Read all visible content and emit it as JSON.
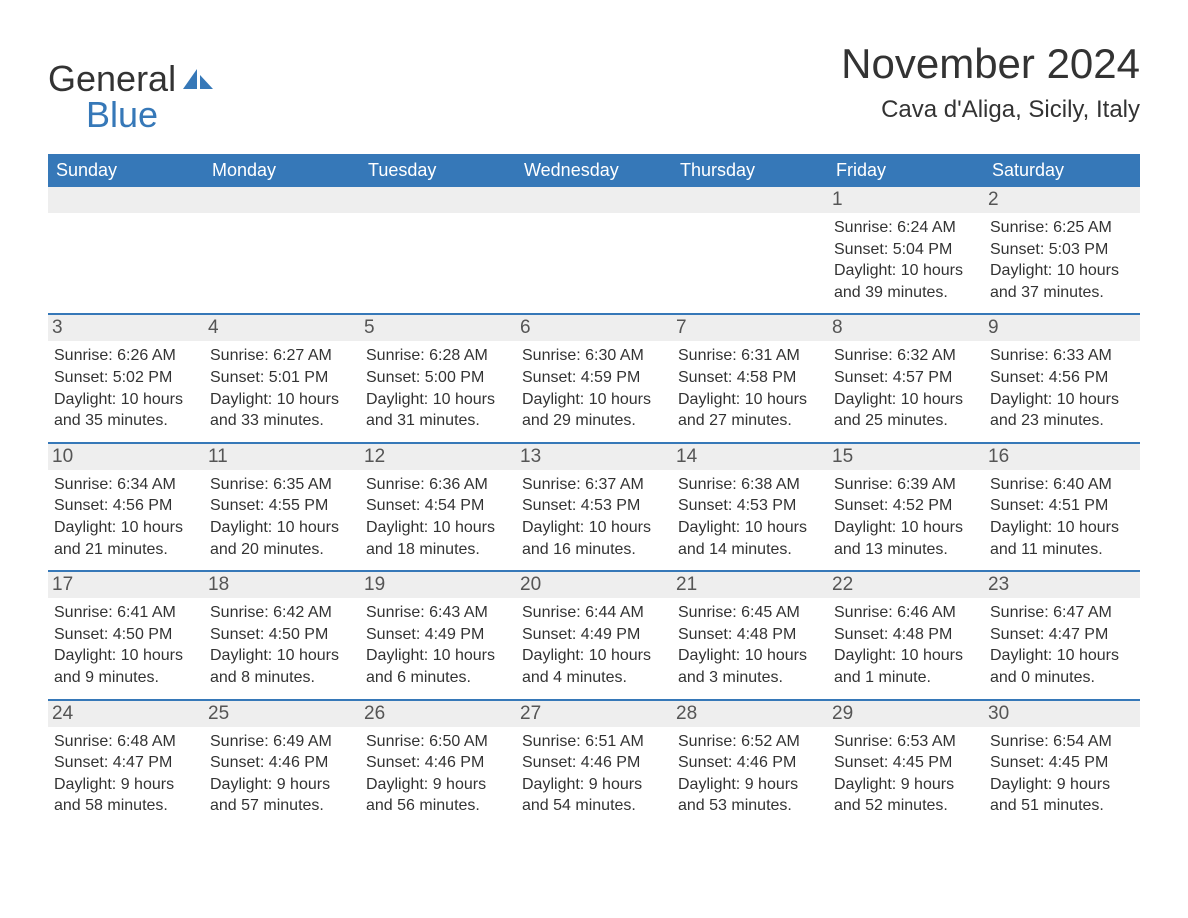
{
  "brand": {
    "general": "General",
    "blue": "Blue"
  },
  "title": "November 2024",
  "subtitle": "Cava d'Aliga, Sicily, Italy",
  "colors": {
    "header_bg": "#3678b8",
    "header_fg": "#ffffff",
    "daynum_bg": "#eeeeee",
    "text": "#333333",
    "rule": "#3678b8",
    "page_bg": "#ffffff"
  },
  "weekdays": [
    "Sunday",
    "Monday",
    "Tuesday",
    "Wednesday",
    "Thursday",
    "Friday",
    "Saturday"
  ],
  "weeks": [
    [
      {
        "empty": true
      },
      {
        "empty": true
      },
      {
        "empty": true
      },
      {
        "empty": true
      },
      {
        "empty": true
      },
      {
        "num": "1",
        "sunrise": "Sunrise: 6:24 AM",
        "sunset": "Sunset: 5:04 PM",
        "d1": "Daylight: 10 hours",
        "d2": "and 39 minutes."
      },
      {
        "num": "2",
        "sunrise": "Sunrise: 6:25 AM",
        "sunset": "Sunset: 5:03 PM",
        "d1": "Daylight: 10 hours",
        "d2": "and 37 minutes."
      }
    ],
    [
      {
        "num": "3",
        "sunrise": "Sunrise: 6:26 AM",
        "sunset": "Sunset: 5:02 PM",
        "d1": "Daylight: 10 hours",
        "d2": "and 35 minutes."
      },
      {
        "num": "4",
        "sunrise": "Sunrise: 6:27 AM",
        "sunset": "Sunset: 5:01 PM",
        "d1": "Daylight: 10 hours",
        "d2": "and 33 minutes."
      },
      {
        "num": "5",
        "sunrise": "Sunrise: 6:28 AM",
        "sunset": "Sunset: 5:00 PM",
        "d1": "Daylight: 10 hours",
        "d2": "and 31 minutes."
      },
      {
        "num": "6",
        "sunrise": "Sunrise: 6:30 AM",
        "sunset": "Sunset: 4:59 PM",
        "d1": "Daylight: 10 hours",
        "d2": "and 29 minutes."
      },
      {
        "num": "7",
        "sunrise": "Sunrise: 6:31 AM",
        "sunset": "Sunset: 4:58 PM",
        "d1": "Daylight: 10 hours",
        "d2": "and 27 minutes."
      },
      {
        "num": "8",
        "sunrise": "Sunrise: 6:32 AM",
        "sunset": "Sunset: 4:57 PM",
        "d1": "Daylight: 10 hours",
        "d2": "and 25 minutes."
      },
      {
        "num": "9",
        "sunrise": "Sunrise: 6:33 AM",
        "sunset": "Sunset: 4:56 PM",
        "d1": "Daylight: 10 hours",
        "d2": "and 23 minutes."
      }
    ],
    [
      {
        "num": "10",
        "sunrise": "Sunrise: 6:34 AM",
        "sunset": "Sunset: 4:56 PM",
        "d1": "Daylight: 10 hours",
        "d2": "and 21 minutes."
      },
      {
        "num": "11",
        "sunrise": "Sunrise: 6:35 AM",
        "sunset": "Sunset: 4:55 PM",
        "d1": "Daylight: 10 hours",
        "d2": "and 20 minutes."
      },
      {
        "num": "12",
        "sunrise": "Sunrise: 6:36 AM",
        "sunset": "Sunset: 4:54 PM",
        "d1": "Daylight: 10 hours",
        "d2": "and 18 minutes."
      },
      {
        "num": "13",
        "sunrise": "Sunrise: 6:37 AM",
        "sunset": "Sunset: 4:53 PM",
        "d1": "Daylight: 10 hours",
        "d2": "and 16 minutes."
      },
      {
        "num": "14",
        "sunrise": "Sunrise: 6:38 AM",
        "sunset": "Sunset: 4:53 PM",
        "d1": "Daylight: 10 hours",
        "d2": "and 14 minutes."
      },
      {
        "num": "15",
        "sunrise": "Sunrise: 6:39 AM",
        "sunset": "Sunset: 4:52 PM",
        "d1": "Daylight: 10 hours",
        "d2": "and 13 minutes."
      },
      {
        "num": "16",
        "sunrise": "Sunrise: 6:40 AM",
        "sunset": "Sunset: 4:51 PM",
        "d1": "Daylight: 10 hours",
        "d2": "and 11 minutes."
      }
    ],
    [
      {
        "num": "17",
        "sunrise": "Sunrise: 6:41 AM",
        "sunset": "Sunset: 4:50 PM",
        "d1": "Daylight: 10 hours",
        "d2": "and 9 minutes."
      },
      {
        "num": "18",
        "sunrise": "Sunrise: 6:42 AM",
        "sunset": "Sunset: 4:50 PM",
        "d1": "Daylight: 10 hours",
        "d2": "and 8 minutes."
      },
      {
        "num": "19",
        "sunrise": "Sunrise: 6:43 AM",
        "sunset": "Sunset: 4:49 PM",
        "d1": "Daylight: 10 hours",
        "d2": "and 6 minutes."
      },
      {
        "num": "20",
        "sunrise": "Sunrise: 6:44 AM",
        "sunset": "Sunset: 4:49 PM",
        "d1": "Daylight: 10 hours",
        "d2": "and 4 minutes."
      },
      {
        "num": "21",
        "sunrise": "Sunrise: 6:45 AM",
        "sunset": "Sunset: 4:48 PM",
        "d1": "Daylight: 10 hours",
        "d2": "and 3 minutes."
      },
      {
        "num": "22",
        "sunrise": "Sunrise: 6:46 AM",
        "sunset": "Sunset: 4:48 PM",
        "d1": "Daylight: 10 hours",
        "d2": "and 1 minute."
      },
      {
        "num": "23",
        "sunrise": "Sunrise: 6:47 AM",
        "sunset": "Sunset: 4:47 PM",
        "d1": "Daylight: 10 hours",
        "d2": "and 0 minutes."
      }
    ],
    [
      {
        "num": "24",
        "sunrise": "Sunrise: 6:48 AM",
        "sunset": "Sunset: 4:47 PM",
        "d1": "Daylight: 9 hours",
        "d2": "and 58 minutes."
      },
      {
        "num": "25",
        "sunrise": "Sunrise: 6:49 AM",
        "sunset": "Sunset: 4:46 PM",
        "d1": "Daylight: 9 hours",
        "d2": "and 57 minutes."
      },
      {
        "num": "26",
        "sunrise": "Sunrise: 6:50 AM",
        "sunset": "Sunset: 4:46 PM",
        "d1": "Daylight: 9 hours",
        "d2": "and 56 minutes."
      },
      {
        "num": "27",
        "sunrise": "Sunrise: 6:51 AM",
        "sunset": "Sunset: 4:46 PM",
        "d1": "Daylight: 9 hours",
        "d2": "and 54 minutes."
      },
      {
        "num": "28",
        "sunrise": "Sunrise: 6:52 AM",
        "sunset": "Sunset: 4:46 PM",
        "d1": "Daylight: 9 hours",
        "d2": "and 53 minutes."
      },
      {
        "num": "29",
        "sunrise": "Sunrise: 6:53 AM",
        "sunset": "Sunset: 4:45 PM",
        "d1": "Daylight: 9 hours",
        "d2": "and 52 minutes."
      },
      {
        "num": "30",
        "sunrise": "Sunrise: 6:54 AM",
        "sunset": "Sunset: 4:45 PM",
        "d1": "Daylight: 9 hours",
        "d2": "and 51 minutes."
      }
    ]
  ]
}
